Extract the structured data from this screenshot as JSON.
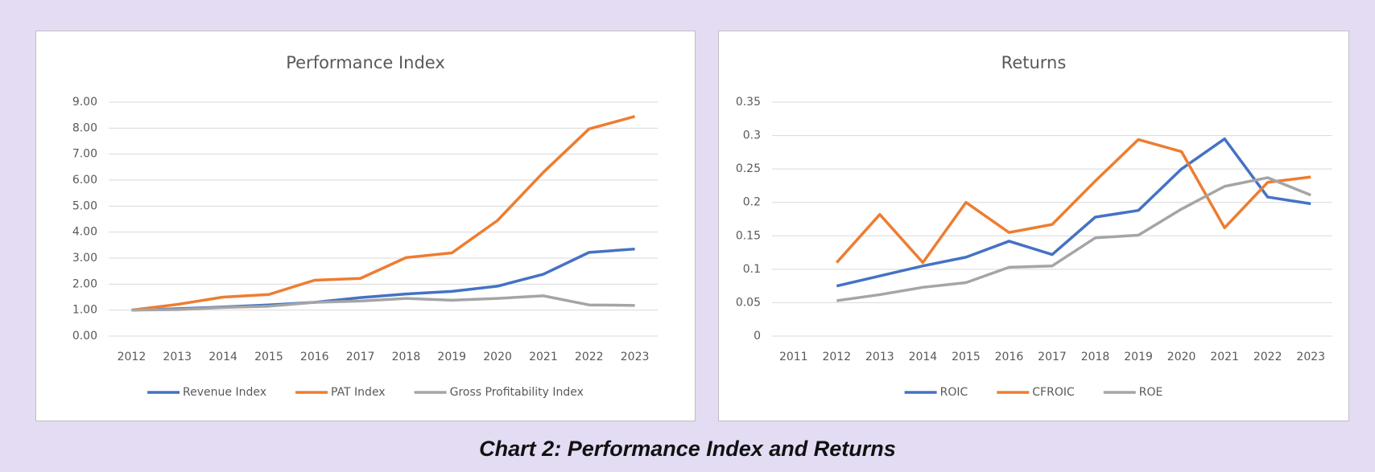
{
  "caption": "Chart 2: Performance Index and Returns",
  "chart_data": [
    {
      "type": "line",
      "title": "Performance Index",
      "categories": [
        "2012",
        "2013",
        "2014",
        "2015",
        "2016",
        "2017",
        "2018",
        "2019",
        "2020",
        "2021",
        "2022",
        "2023"
      ],
      "series": [
        {
          "name": "Revenue Index",
          "color": "#4472c4",
          "values": [
            1.0,
            1.05,
            1.12,
            1.2,
            1.3,
            1.48,
            1.62,
            1.72,
            1.92,
            2.38,
            3.22,
            3.35
          ]
        },
        {
          "name": "PAT Index",
          "color": "#ed7d31",
          "values": [
            1.0,
            1.22,
            1.5,
            1.6,
            2.15,
            2.22,
            3.02,
            3.2,
            4.45,
            6.3,
            7.97,
            8.45
          ]
        },
        {
          "name": "Gross Profitability Index",
          "color": "#a5a5a5",
          "values": [
            1.0,
            1.02,
            1.1,
            1.15,
            1.3,
            1.35,
            1.45,
            1.38,
            1.45,
            1.55,
            1.2,
            1.18
          ]
        }
      ],
      "ylim": [
        0,
        9
      ],
      "yticks": [
        {
          "value": 0,
          "label": "0.00"
        },
        {
          "value": 1,
          "label": "1.00"
        },
        {
          "value": 2,
          "label": "2.00"
        },
        {
          "value": 3,
          "label": "3.00"
        },
        {
          "value": 4,
          "label": "4.00"
        },
        {
          "value": 5,
          "label": "5.00"
        },
        {
          "value": 6,
          "label": "6.00"
        },
        {
          "value": 7,
          "label": "7.00"
        },
        {
          "value": 8,
          "label": "8.00"
        },
        {
          "value": 9,
          "label": "9.00"
        }
      ],
      "grid": true,
      "legend": "bottom"
    },
    {
      "type": "line",
      "title": "Returns",
      "categories": [
        "2011",
        "2012",
        "2013",
        "2014",
        "2015",
        "2016",
        "2017",
        "2018",
        "2019",
        "2020",
        "2021",
        "2022",
        "2023"
      ],
      "series": [
        {
          "name": "ROIC",
          "color": "#4472c4",
          "values": [
            null,
            0.075,
            0.09,
            0.105,
            0.118,
            0.142,
            0.122,
            0.178,
            0.188,
            0.25,
            0.295,
            0.208,
            0.198
          ]
        },
        {
          "name": "CFROIC",
          "color": "#ed7d31",
          "values": [
            null,
            0.11,
            0.182,
            0.11,
            0.2,
            0.155,
            0.167,
            0.232,
            0.294,
            0.276,
            0.162,
            0.23,
            0.238
          ]
        },
        {
          "name": "ROE",
          "color": "#a5a5a5",
          "values": [
            null,
            0.053,
            0.062,
            0.073,
            0.08,
            0.103,
            0.105,
            0.147,
            0.151,
            0.19,
            0.224,
            0.237,
            0.211
          ]
        }
      ],
      "ylim": [
        0,
        0.35
      ],
      "yticks": [
        0,
        0.05,
        0.1,
        0.15,
        0.2,
        0.25,
        0.3,
        0.35
      ],
      "grid": true,
      "legend": "bottom"
    }
  ]
}
